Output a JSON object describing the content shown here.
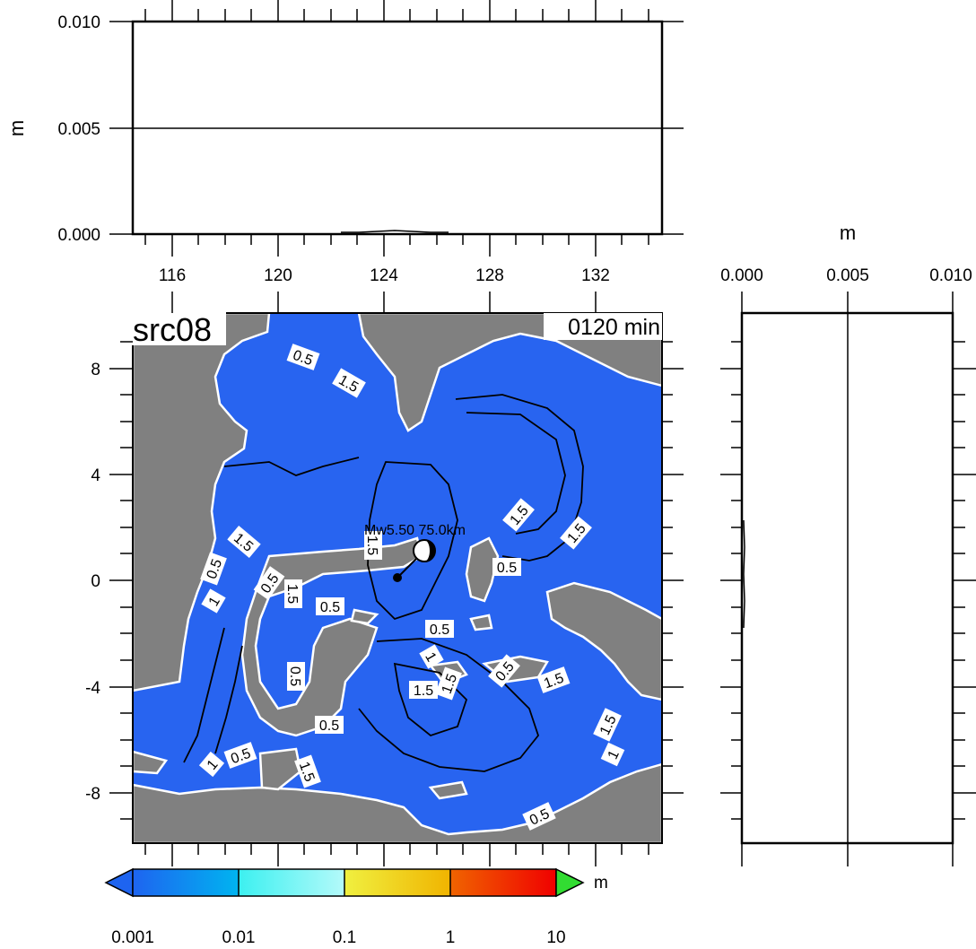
{
  "top_panel": {
    "ylabel": "m",
    "y_ticks": [
      "0.000",
      "0.005",
      "0.010"
    ],
    "x_ticks": [
      "116",
      "120",
      "124",
      "128",
      "132"
    ]
  },
  "map": {
    "title": "src08",
    "time": "0120 min",
    "y_ticks": [
      "8",
      "4",
      "0",
      "-4",
      "-8"
    ],
    "epicenter_label": "Mw5.50  75.0km",
    "contour_labels": [
      "0.5",
      "1",
      "1.5"
    ],
    "colors": {
      "land": "#808080",
      "sea": "#2864f0",
      "contour": "#000000",
      "coast": "#ffffff"
    }
  },
  "right_panel": {
    "xlabel": "m",
    "x_ticks": [
      "0.000",
      "0.005",
      "0.010"
    ]
  },
  "colorbar": {
    "unit": "m",
    "ticks": [
      "0.001",
      "0.01",
      "0.1",
      "1",
      "10"
    ],
    "colors": [
      "#1e64f0",
      "#00b4f0",
      "#3cf0f0",
      "#b4fafa",
      "#f0f040",
      "#f0b400",
      "#f06400",
      "#f00000",
      "#32dc32"
    ]
  }
}
